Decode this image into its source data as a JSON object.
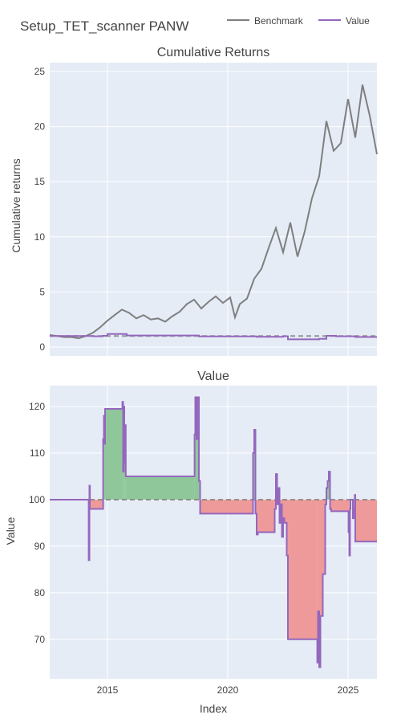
{
  "figure_title": "Setup_TET_scanner PANW",
  "legend": {
    "items": [
      {
        "label": "Benchmark",
        "color": "#7f7f7f"
      },
      {
        "label": "Value",
        "color": "#9467bd"
      }
    ]
  },
  "colors": {
    "plot_bg": "#e5ecf6",
    "grid": "#ffffff",
    "benchmark": "#7f7f7f",
    "value": "#9467bd",
    "gain_fill": "#8fc79a",
    "loss_fill": "#ef9a9a",
    "reference_line": "#7f7f7f"
  },
  "chart_data": [
    {
      "type": "line",
      "title": "Cumulative Returns",
      "xlabel": "",
      "ylabel": "Cumulative returns",
      "xlim": [
        2012.6,
        2026.2
      ],
      "ylim": [
        -0.8,
        25.8
      ],
      "yticks": [
        0,
        5,
        10,
        15,
        20,
        25
      ],
      "xticks": [
        2015,
        2020,
        2025
      ],
      "xtick_labels": [
        "",
        "",
        ""
      ],
      "grid": true,
      "reference_line": {
        "y": 1.0,
        "style": "dashed"
      },
      "series": [
        {
          "name": "Benchmark",
          "x": [
            2012.6,
            2012.9,
            2013.2,
            2013.5,
            2013.8,
            2014.1,
            2014.4,
            2014.7,
            2015.0,
            2015.3,
            2015.6,
            2015.9,
            2016.2,
            2016.5,
            2016.8,
            2017.1,
            2017.4,
            2017.7,
            2018.0,
            2018.3,
            2018.6,
            2018.9,
            2019.2,
            2019.5,
            2019.8,
            2020.1,
            2020.3,
            2020.5,
            2020.8,
            2021.1,
            2021.4,
            2021.7,
            2022.0,
            2022.3,
            2022.6,
            2022.9,
            2023.2,
            2023.5,
            2023.8,
            2024.1,
            2024.4,
            2024.7,
            2025.0,
            2025.3,
            2025.6,
            2025.9,
            2026.2
          ],
          "values": [
            1.1,
            1.0,
            0.9,
            0.9,
            0.8,
            1.0,
            1.3,
            1.8,
            2.4,
            2.9,
            3.4,
            3.1,
            2.6,
            2.9,
            2.5,
            2.6,
            2.3,
            2.8,
            3.2,
            3.9,
            4.3,
            3.5,
            4.1,
            4.6,
            4.0,
            4.5,
            2.7,
            3.9,
            4.4,
            6.2,
            7.1,
            9.0,
            10.8,
            8.6,
            11.3,
            8.2,
            10.5,
            13.5,
            15.5,
            20.5,
            17.8,
            18.5,
            22.5,
            19.0,
            23.8,
            21.0,
            17.5
          ]
        },
        {
          "name": "Value",
          "x": [
            2012.6,
            2014.0,
            2014.4,
            2014.8,
            2015.0,
            2015.6,
            2015.8,
            2017.0,
            2018.6,
            2018.8,
            2021.0,
            2021.2,
            2022.0,
            2022.3,
            2022.5,
            2023.2,
            2023.8,
            2024.1,
            2024.5,
            2025.0,
            2025.3,
            2026.2
          ],
          "values": [
            1.0,
            1.0,
            0.98,
            1.02,
            1.19,
            1.19,
            1.05,
            1.05,
            1.05,
            0.97,
            0.97,
            0.93,
            0.93,
            0.98,
            0.7,
            0.7,
            0.75,
            1.02,
            0.98,
            0.98,
            0.91,
            0.91
          ]
        }
      ]
    },
    {
      "type": "line",
      "title": "Value",
      "xlabel": "Index",
      "ylabel": "Value",
      "xlim": [
        2012.6,
        2026.2
      ],
      "ylim": [
        61.5,
        124.5
      ],
      "yticks": [
        70,
        80,
        90,
        100,
        110,
        120
      ],
      "xticks": [
        2015,
        2020,
        2025
      ],
      "xtick_labels": [
        "2015",
        "2020",
        "2025"
      ],
      "grid": true,
      "reference_line": {
        "y": 100,
        "style": "dashed"
      },
      "series": [
        {
          "name": "Value",
          "x": [
            2012.6,
            2014.2,
            2014.22,
            2014.25,
            2014.27,
            2014.3,
            2014.32,
            2014.35,
            2014.8,
            2014.82,
            2014.85,
            2014.88,
            2014.9,
            2014.95,
            2015.6,
            2015.62,
            2015.65,
            2015.68,
            2015.7,
            2015.73,
            2015.76,
            2015.8,
            2015.85,
            2015.9,
            2018.6,
            2018.62,
            2018.65,
            2018.7,
            2018.75,
            2018.8,
            2018.85,
            2021.0,
            2021.05,
            2021.1,
            2021.15,
            2021.2,
            2021.25,
            2021.3,
            2021.9,
            2021.95,
            2022.0,
            2022.05,
            2022.1,
            2022.15,
            2022.2,
            2022.25,
            2022.3,
            2022.35,
            2022.4,
            2022.45,
            2022.5,
            2023.7,
            2023.72,
            2023.75,
            2023.8,
            2023.85,
            2023.9,
            2023.95,
            2024.0,
            2024.05,
            2024.1,
            2024.15,
            2024.2,
            2024.25,
            2024.3,
            2024.35,
            2024.4,
            2025.0,
            2025.02,
            2025.05,
            2025.08,
            2025.1,
            2025.2,
            2025.25,
            2025.28,
            2025.3,
            2025.35,
            2026.2
          ],
          "values": [
            100,
            100,
            87,
            103,
            98,
            98,
            98,
            98,
            98,
            113,
            118,
            112,
            119.5,
            119.5,
            119.5,
            121,
            106,
            120,
            108,
            116,
            105,
            105,
            105,
            105,
            105,
            114,
            122,
            113,
            122,
            104,
            97,
            97,
            110,
            115,
            97,
            92.5,
            93,
            93,
            93,
            98,
            105.5,
            99,
            102.5,
            95,
            99,
            92,
            96,
            95,
            95,
            88,
            70,
            70,
            65,
            76,
            64,
            75,
            75,
            84,
            84,
            99,
            102.5,
            104,
            106,
            98,
            97.5,
            97.5,
            97.5,
            97.5,
            93,
            88,
            98,
            100,
            96,
            98,
            101,
            91,
            91,
            91
          ]
        }
      ]
    }
  ]
}
